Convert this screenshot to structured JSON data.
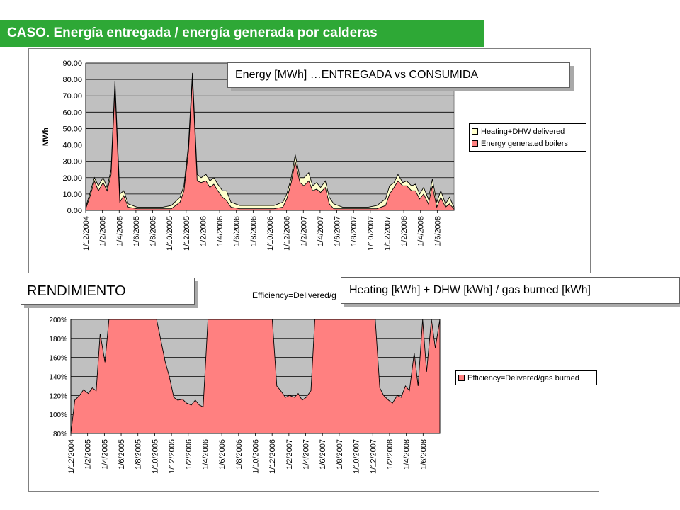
{
  "header": {
    "title": "CASO. Energía entregada / energía generada por calderas"
  },
  "callouts": {
    "top": "Energy [MWh] …ENTREGADA vs CONSUMIDA",
    "rendimiento": "RENDIMIENTO",
    "heating": "Heating [kWh] + DHW [kWh] / gas burned [kWh]"
  },
  "colors": {
    "header_bg": "#2ea836",
    "plot_area": "#c0c0c0",
    "delivered": "#ffffcc",
    "generated": "#ff8080",
    "efficiency": "#ff8080"
  },
  "chart_data": [
    {
      "type": "area",
      "title": "",
      "xlabel": "",
      "ylabel": "MWh",
      "ylim": [
        0,
        90
      ],
      "y_ticks": [
        "0.00",
        "10.00",
        "20.00",
        "30.00",
        "40.00",
        "50.00",
        "60.00",
        "70.00",
        "80.00",
        "90.00"
      ],
      "x_tick_labels": [
        "1/12/2004",
        "1/2/2005",
        "1/4/2005",
        "1/6/2005",
        "1/8/2005",
        "1/10/2005",
        "1/12/2005",
        "1/2/2006",
        "1/4/2006",
        "1/6/2006",
        "1/8/2006",
        "1/10/2006",
        "1/12/2006",
        "1/2/2007",
        "1/4/2007",
        "1/6/2007",
        "1/8/2007",
        "1/10/2007",
        "1/12/2007",
        "1/2/2008",
        "1/4/2008",
        "1/6/2008"
      ],
      "grid": true,
      "legend": "right",
      "x": [
        "1/12/2004",
        "15/12/2004",
        "1/1/2005",
        "15/1/2005",
        "1/2/2005",
        "15/2/2005",
        "1/3/2005",
        "15/3/2005",
        "1/4/2005",
        "15/4/2005",
        "1/5/2005",
        "1/6/2005",
        "1/7/2005",
        "1/8/2005",
        "1/9/2005",
        "1/10/2005",
        "1/11/2005",
        "15/11/2005",
        "1/12/2005",
        "15/12/2005",
        "1/1/2006",
        "15/1/2006",
        "1/2/2006",
        "15/2/2006",
        "1/3/2006",
        "15/3/2006",
        "1/4/2006",
        "15/4/2006",
        "1/5/2006",
        "1/6/2006",
        "1/7/2006",
        "1/8/2006",
        "1/9/2006",
        "1/10/2006",
        "1/11/2006",
        "15/11/2006",
        "1/12/2006",
        "15/12/2006",
        "1/1/2007",
        "15/1/2007",
        "1/2/2007",
        "15/2/2007",
        "1/3/2007",
        "15/3/2007",
        "1/4/2007",
        "15/4/2007",
        "1/5/2007",
        "1/6/2007",
        "1/7/2007",
        "1/8/2007",
        "1/9/2007",
        "1/10/2007",
        "1/11/2007",
        "15/11/2007",
        "1/12/2007",
        "15/12/2007",
        "1/1/2008",
        "15/1/2008",
        "1/2/2008",
        "15/2/2008",
        "1/3/2008",
        "15/3/2008",
        "1/4/2008",
        "15/4/2008",
        "1/5/2008",
        "15/5/2008",
        "1/6/2008",
        "15/6/2008",
        "1/7/2008"
      ],
      "series": [
        {
          "name": "Heating+DHW delivered",
          "values": [
            2,
            10,
            20,
            15,
            20,
            14,
            25,
            79,
            10,
            12,
            4,
            2,
            2,
            2,
            2,
            3,
            8,
            15,
            40,
            84,
            22,
            20,
            22,
            18,
            20,
            16,
            12,
            12,
            5,
            3,
            3,
            3,
            3,
            3,
            5,
            10,
            20,
            34,
            20,
            20,
            23,
            15,
            17,
            14,
            18,
            8,
            4,
            2,
            2,
            2,
            2,
            3,
            7,
            15,
            17,
            22,
            17,
            18,
            15,
            16,
            10,
            14,
            7,
            19,
            5,
            12,
            4,
            8,
            2
          ]
        },
        {
          "name": "Energy generated boilers",
          "values": [
            1,
            8,
            18,
            12,
            17,
            12,
            22,
            75,
            5,
            9,
            2,
            1,
            1,
            1,
            1,
            1,
            5,
            12,
            36,
            80,
            18,
            17,
            18,
            14,
            16,
            12,
            8,
            6,
            2,
            1,
            1,
            1,
            1,
            1,
            2,
            7,
            17,
            30,
            17,
            15,
            18,
            12,
            13,
            11,
            14,
            4,
            1,
            1,
            1,
            1,
            1,
            1,
            3,
            10,
            14,
            18,
            15,
            15,
            12,
            12,
            7,
            10,
            4,
            15,
            2,
            8,
            2,
            4,
            1
          ]
        }
      ]
    },
    {
      "type": "area",
      "title": "Efficiency=Delivered/g",
      "xlabel": "",
      "ylabel": "",
      "ylim": [
        80,
        200
      ],
      "y_ticks": [
        "80%",
        "100%",
        "120%",
        "140%",
        "160%",
        "180%",
        "200%"
      ],
      "x_tick_labels": [
        "1/12/2004",
        "1/2/2005",
        "1/4/2005",
        "1/6/2005",
        "1/8/2005",
        "1/10/2005",
        "1/12/2005",
        "1/2/2006",
        "1/4/2006",
        "1/6/2006",
        "1/8/2006",
        "1/10/2006",
        "1/12/2006",
        "1/2/2007",
        "1/4/2007",
        "1/6/2007",
        "1/8/2007",
        "1/10/2007",
        "1/12/2007",
        "1/2/2008",
        "1/4/2008",
        "1/6/2008"
      ],
      "grid": true,
      "legend": "right",
      "x": [
        "1/12/2004",
        "15/12/2004",
        "1/1/2005",
        "15/1/2005",
        "1/2/2005",
        "15/2/2005",
        "1/3/2005",
        "15/3/2005",
        "1/4/2005",
        "15/4/2005",
        "1/5/2005",
        "1/6/2005",
        "1/7/2005",
        "1/8/2005",
        "1/9/2005",
        "1/10/2005",
        "1/11/2005",
        "15/11/2005",
        "1/12/2005",
        "15/12/2005",
        "1/1/2006",
        "15/1/2006",
        "1/2/2006",
        "15/2/2006",
        "1/3/2006",
        "15/3/2006",
        "1/4/2006",
        "15/4/2006",
        "1/5/2006",
        "1/6/2006",
        "1/7/2006",
        "1/8/2006",
        "1/9/2006",
        "1/10/2006",
        "1/11/2006",
        "15/11/2006",
        "1/12/2006",
        "15/12/2006",
        "1/1/2007",
        "15/1/2007",
        "1/2/2007",
        "15/2/2007",
        "1/3/2007",
        "15/3/2007",
        "1/4/2007",
        "15/4/2007",
        "1/5/2007",
        "1/6/2007",
        "1/7/2007",
        "1/8/2007",
        "1/9/2007",
        "1/10/2007",
        "1/11/2007",
        "15/11/2007",
        "1/12/2007",
        "15/12/2007",
        "1/1/2008",
        "15/1/2008",
        "1/2/2008",
        "15/2/2008",
        "1/3/2008",
        "15/3/2008",
        "1/4/2008",
        "15/4/2008",
        "1/5/2008",
        "15/5/2008",
        "1/6/2008",
        "15/6/2008",
        "1/7/2008"
      ],
      "series": [
        {
          "name": "Efficiency=Delivered/gas burned",
          "values": [
            80,
            115,
            120,
            126,
            122,
            128,
            125,
            185,
            155,
            200,
            200,
            200,
            200,
            200,
            200,
            200,
            155,
            140,
            118,
            115,
            116,
            112,
            110,
            115,
            110,
            108,
            200,
            200,
            200,
            200,
            200,
            200,
            200,
            200,
            200,
            200,
            130,
            125,
            118,
            120,
            118,
            122,
            115,
            118,
            125,
            200,
            200,
            200,
            200,
            200,
            200,
            200,
            200,
            200,
            128,
            120,
            115,
            112,
            120,
            118,
            130,
            125,
            165,
            130,
            200,
            145,
            200,
            170,
            200
          ]
        }
      ]
    }
  ],
  "legend_top": [
    "Heating+DHW delivered",
    "Energy generated boilers"
  ],
  "legend_bottom": [
    "Efficiency=Delivered/gas burned"
  ]
}
